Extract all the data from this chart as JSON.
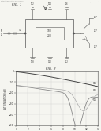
{
  "background_color": "#f5f5f0",
  "header_text": "Patent Application Publication",
  "header_right": "US 0000/0000000 A1",
  "fig1_label": "FIG. 1",
  "fig2_label": "FIG. 2",
  "graph_xlabel": "CONTROL VOLTAGE (VOLTS)",
  "graph_ylabel": "ATTENUATION (dB)",
  "graph_xlim": [
    0,
    14
  ],
  "graph_ylim": [
    -50,
    0
  ],
  "graph_yticks": [
    0,
    -10,
    -20,
    -30,
    -40,
    -50
  ],
  "graph_xticks": [
    0,
    2,
    4,
    6,
    8,
    10,
    12,
    14
  ],
  "gray": "#555555",
  "lgray": "#aaaaaa",
  "dgray": "#333333"
}
